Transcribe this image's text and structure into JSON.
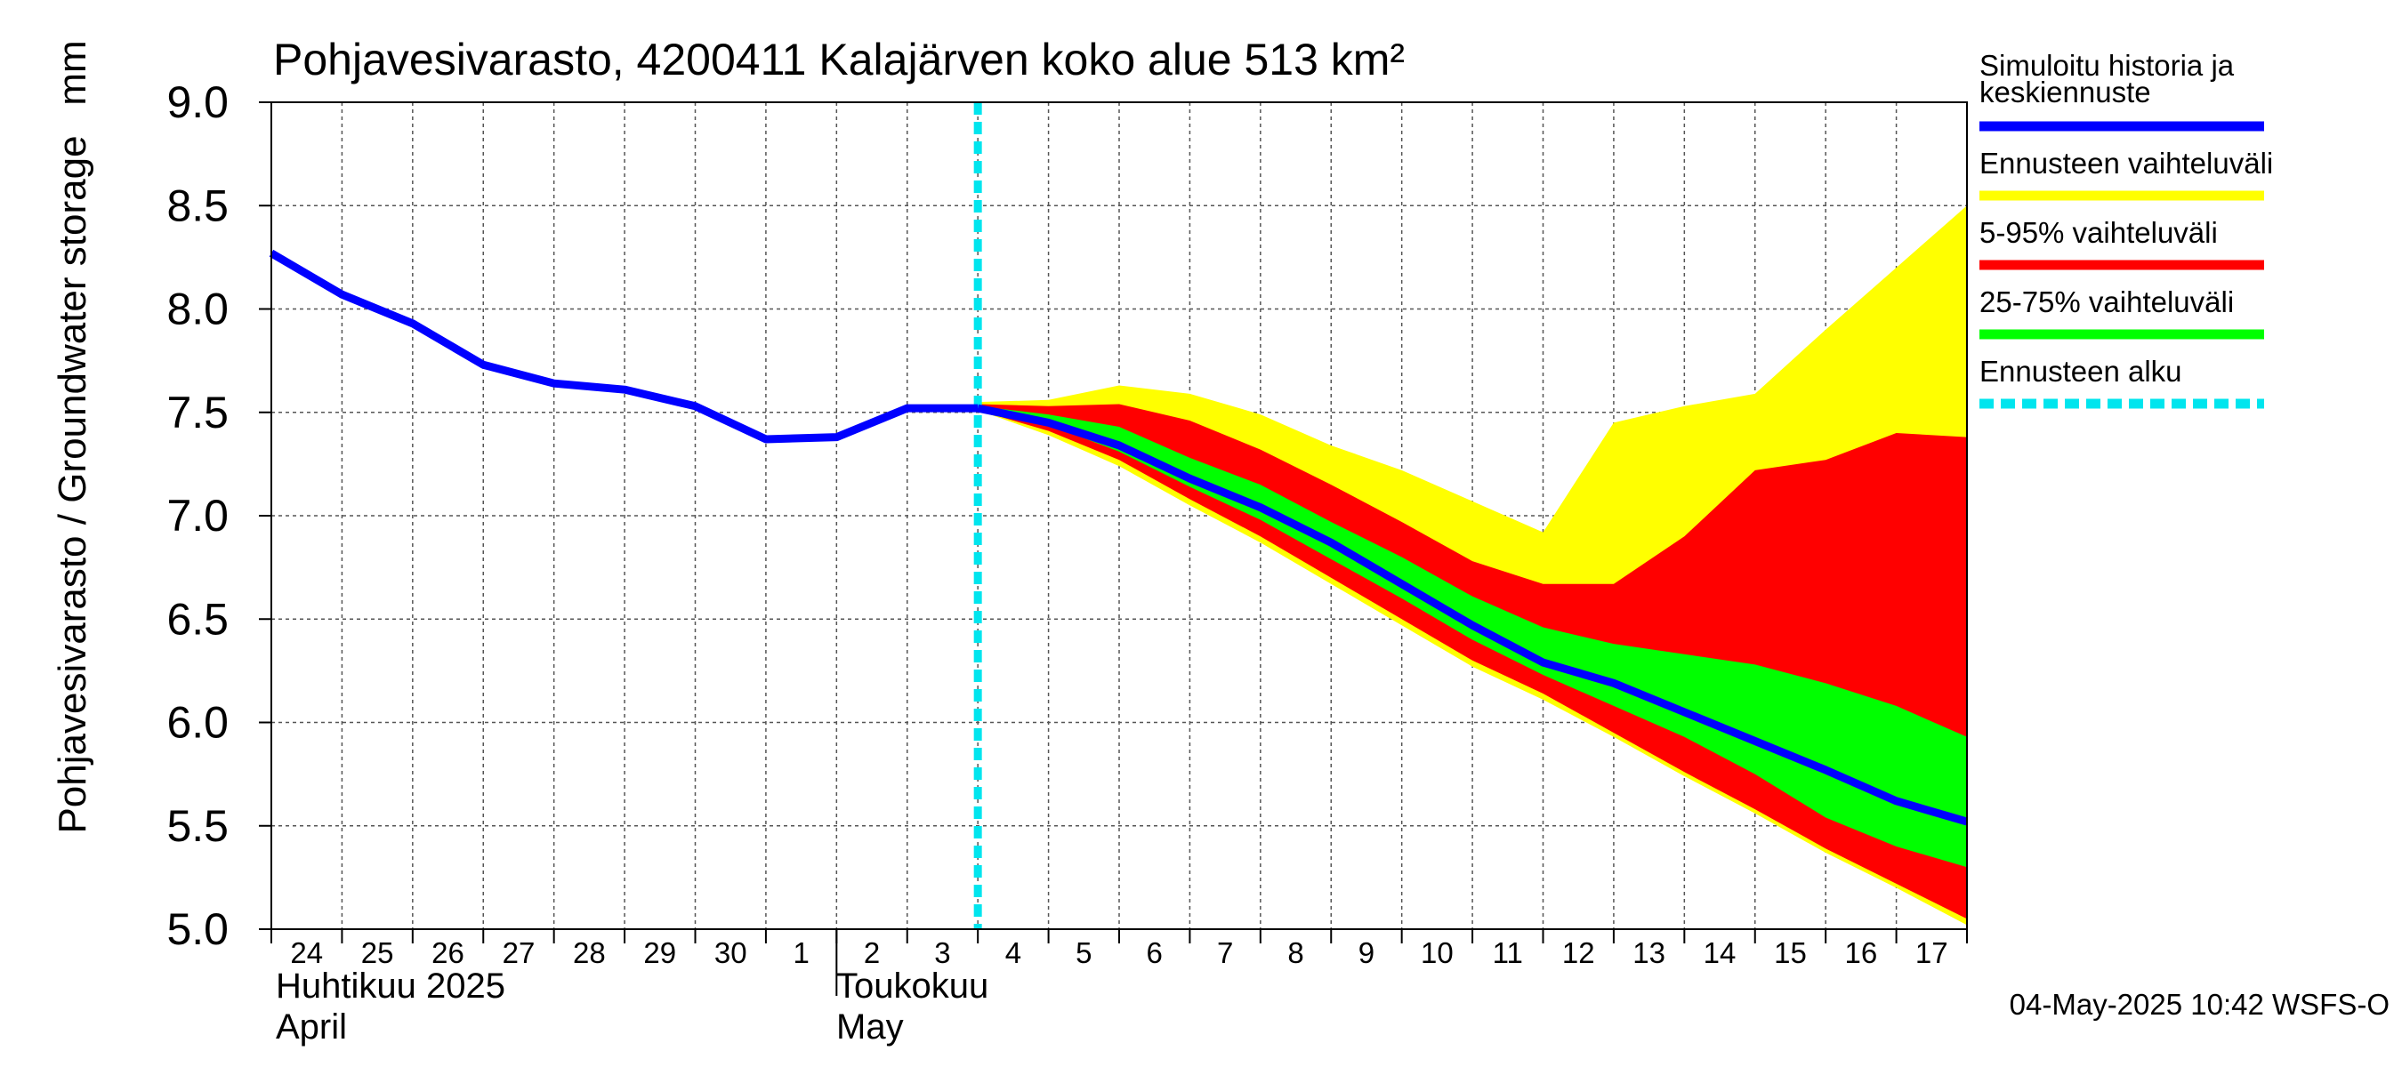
{
  "chart_data": {
    "type": "area",
    "title": "Pohjavesivarasto, 4200411 Kalajärven koko alue 513 km²",
    "ylabel": "Pohjavesivarasto / Groundwater storage",
    "yunit": "mm",
    "ylim": [
      5.0,
      9.0
    ],
    "yticks": [
      "5.0",
      "5.5",
      "6.0",
      "6.5",
      "7.0",
      "7.5",
      "8.0",
      "8.5",
      "9.0"
    ],
    "xticks": [
      "24",
      "25",
      "26",
      "27",
      "28",
      "29",
      "30",
      "1",
      "2",
      "3",
      "4",
      "5",
      "6",
      "7",
      "8",
      "9",
      "10",
      "11",
      "12",
      "13",
      "14",
      "15",
      "16",
      "17"
    ],
    "month_labels": [
      {
        "line1": "Huhtikuu  2025",
        "line2": "April",
        "start_day": 0
      },
      {
        "line1": "Toukokuu",
        "line2": "May",
        "start_day": 8
      }
    ],
    "grid": true,
    "forecast_start_day": 10,
    "history": {
      "name": "Simuloitu historia ja keskiennuste",
      "color": "#0000ff",
      "days": [
        0,
        1,
        2,
        3,
        4,
        5,
        6,
        7,
        8,
        9,
        10
      ],
      "values": [
        8.27,
        8.07,
        7.93,
        7.73,
        7.64,
        7.61,
        7.53,
        7.37,
        7.38,
        7.52,
        7.52
      ]
    },
    "forecast_days": [
      10,
      11,
      12,
      13,
      14,
      15,
      16,
      17,
      18,
      19,
      20,
      21,
      22,
      23,
      24
    ],
    "median": [
      7.52,
      7.45,
      7.34,
      7.18,
      7.04,
      6.87,
      6.67,
      6.47,
      6.29,
      6.19,
      6.05,
      5.91,
      5.77,
      5.62,
      5.52
    ],
    "bands": [
      {
        "name": "Ennusteen vaihteluväli",
        "color": "#ffff00",
        "upper": [
          7.55,
          7.56,
          7.63,
          7.59,
          7.49,
          7.34,
          7.22,
          7.07,
          6.92,
          7.45,
          7.53,
          7.59,
          7.9,
          8.2,
          8.5
        ],
        "lower": [
          7.51,
          7.39,
          7.24,
          7.05,
          6.87,
          6.67,
          6.47,
          6.27,
          6.11,
          5.93,
          5.74,
          5.56,
          5.37,
          5.2,
          5.02
        ]
      },
      {
        "name": "5-95% vaihteluväli",
        "color": "#ff0000",
        "upper": [
          7.54,
          7.53,
          7.54,
          7.46,
          7.32,
          7.15,
          6.97,
          6.78,
          6.67,
          6.67,
          6.9,
          7.22,
          7.27,
          7.4,
          7.38
        ],
        "lower": [
          7.51,
          7.41,
          7.27,
          7.08,
          6.9,
          6.7,
          6.5,
          6.3,
          6.14,
          5.95,
          5.76,
          5.58,
          5.39,
          5.22,
          5.05
        ]
      },
      {
        "name": "25-75% vaihteluväli",
        "color": "#00ff00",
        "upper": [
          7.53,
          7.49,
          7.43,
          7.28,
          7.15,
          6.97,
          6.8,
          6.61,
          6.46,
          6.38,
          6.33,
          6.28,
          6.19,
          6.08,
          5.93
        ],
        "lower": [
          7.52,
          7.44,
          7.31,
          7.14,
          6.98,
          6.79,
          6.6,
          6.4,
          6.23,
          6.08,
          5.93,
          5.75,
          5.54,
          5.4,
          5.3
        ]
      }
    ],
    "legend": [
      {
        "label_lines": [
          "Simuloitu historia ja",
          "keskiennuste"
        ],
        "color": "#0000ff",
        "style": "solid"
      },
      {
        "label_lines": [
          "Ennusteen vaihteluväli"
        ],
        "color": "#ffff00",
        "style": "solid"
      },
      {
        "label_lines": [
          "5-95% vaihteluväli"
        ],
        "color": "#ff0000",
        "style": "solid"
      },
      {
        "label_lines": [
          "25-75% vaihteluväli"
        ],
        "color": "#00ff00",
        "style": "solid"
      },
      {
        "label_lines": [
          "Ennusteen alku"
        ],
        "color": "#00e5ee",
        "style": "dashed"
      }
    ],
    "legend_position": "right",
    "footer": "04-May-2025 10:42 WSFS-O"
  }
}
